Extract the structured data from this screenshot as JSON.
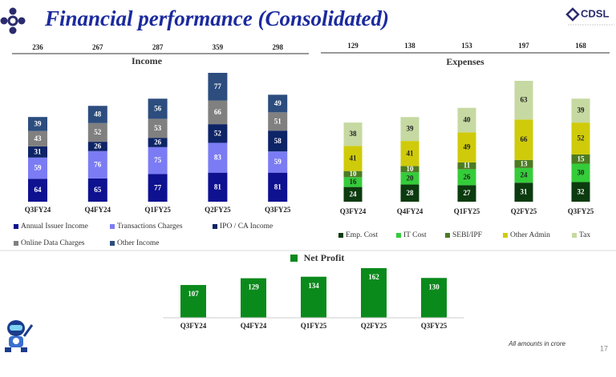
{
  "header": {
    "title": "Financial performance (Consolidated)",
    "logo": "CDSL"
  },
  "footer": {
    "note": "All amounts in crore",
    "page": 17
  },
  "chart_data": [
    {
      "type": "bar",
      "stacked": true,
      "title": "Income",
      "categories": [
        "Q3FY24",
        "Q4FY24",
        "Q1FY25",
        "Q2FY25",
        "Q3FY25"
      ],
      "totals": [
        236,
        267,
        287,
        359,
        298
      ],
      "series": [
        {
          "name": "Annual Issuer Income",
          "color": "#0e1190",
          "values": [
            64,
            65,
            77,
            81,
            81
          ]
        },
        {
          "name": "Transactions Charges",
          "color": "#7b7cf4",
          "values": [
            59,
            76,
            75,
            83,
            59
          ]
        },
        {
          "name": "IPO / CA Income",
          "color": "#0d2466",
          "values": [
            31,
            26,
            26,
            52,
            58
          ]
        },
        {
          "name": "Online Data Charges",
          "color": "#808080",
          "values": [
            43,
            52,
            53,
            66,
            51
          ]
        },
        {
          "name": "Other Income",
          "color": "#2c4d7e",
          "values": [
            39,
            48,
            56,
            77,
            49
          ]
        }
      ]
    },
    {
      "type": "bar",
      "stacked": true,
      "title": "Expenses",
      "categories": [
        "Q3FY24",
        "Q4FY24",
        "Q1FY25",
        "Q2FY25",
        "Q3FY25"
      ],
      "totals": [
        129,
        138,
        153,
        197,
        168
      ],
      "series": [
        {
          "name": "Emp. Cost",
          "color": "#0b3b0e",
          "values": [
            24,
            28,
            27,
            31,
            32
          ]
        },
        {
          "name": "IT Cost",
          "color": "#35cc3a",
          "values": [
            16,
            20,
            26,
            24,
            30
          ]
        },
        {
          "name": "SEBI/IPF",
          "color": "#4c7b22",
          "values": [
            10,
            10,
            11,
            13,
            15
          ]
        },
        {
          "name": "Other Admin",
          "color": "#cfcb0a",
          "values": [
            41,
            41,
            49,
            66,
            52
          ]
        },
        {
          "name": "Tax",
          "color": "#c6d9a2",
          "values": [
            38,
            39,
            40,
            63,
            39
          ]
        }
      ]
    },
    {
      "type": "bar",
      "title": "Net Profit",
      "color": "#0b8a1c",
      "categories": [
        "Q3FY24",
        "Q4FY24",
        "Q1FY25",
        "Q2FY25",
        "Q3FY25"
      ],
      "values": [
        107,
        129,
        134,
        162,
        130
      ]
    }
  ]
}
